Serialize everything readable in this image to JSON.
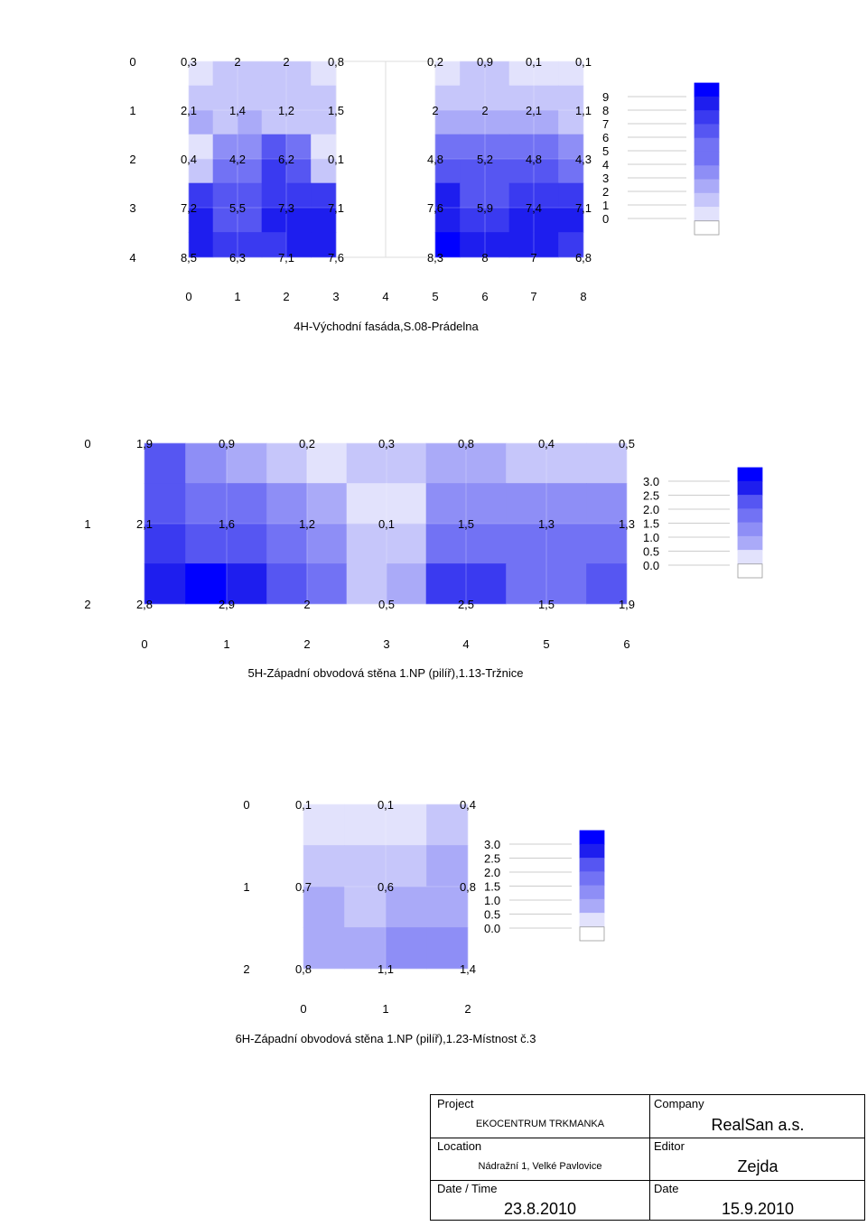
{
  "chart_data": [
    {
      "type": "heatmap",
      "title": "4H-Východní fasáda,S.08-Prádelna",
      "x": [
        0,
        1,
        2,
        3,
        4,
        5,
        6,
        7,
        8
      ],
      "y": [
        0,
        1,
        2,
        3,
        4
      ],
      "panels": [
        {
          "cols": [
            0,
            1,
            2,
            3
          ],
          "values": [
            [
              "0,3",
              "2",
              "2",
              "0,8"
            ],
            [
              "2,1",
              "1,4",
              "1,2",
              "1,5"
            ],
            [
              "0,4",
              "4,2",
              "6,2",
              "0,1"
            ],
            [
              "7,2",
              "5,5",
              "7,3",
              "7,1"
            ],
            [
              "8,5",
              "6,3",
              "7,1",
              "7,6"
            ]
          ]
        },
        {
          "cols": [
            5,
            6,
            7,
            8
          ],
          "values": [
            [
              "0,2",
              "0,9",
              "0,1",
              "0,1"
            ],
            [
              "2",
              "2",
              "2,1",
              "1,1"
            ],
            [
              "4,8",
              "5,2",
              "4,8",
              "4,3"
            ],
            [
              "7,6",
              "5,9",
              "7,4",
              "7,1"
            ],
            [
              "8,3",
              "8",
              "7",
              "6,8"
            ]
          ]
        }
      ],
      "legend_levels": [
        "9",
        "8",
        "7",
        "6",
        "5",
        "4",
        "3",
        "2",
        "1",
        "0"
      ],
      "zmin": 0,
      "zmax": 9
    },
    {
      "type": "heatmap",
      "title": "5H-Západní obvodová stěna 1.NP (pilíř),1.13-Tržnice",
      "x": [
        0,
        1,
        2,
        3,
        4,
        5,
        6
      ],
      "y": [
        0,
        1,
        2
      ],
      "panels": [
        {
          "cols": [
            0,
            1,
            2,
            3,
            4,
            5,
            6
          ],
          "values": [
            [
              "1,9",
              "0,9",
              "0,2",
              "0,3",
              "0,8",
              "0,4",
              "0,5"
            ],
            [
              "2,1",
              "1,6",
              "1,2",
              "0,1",
              "1,5",
              "1,3",
              "1,3"
            ],
            [
              "2,8",
              "2,9",
              "2",
              "0,5",
              "2,5",
              "1,5",
              "1,9"
            ]
          ]
        }
      ],
      "legend_levels": [
        "3.0",
        "2.5",
        "2.0",
        "1.5",
        "1.0",
        "0.5",
        "0.0"
      ],
      "zmin": 0,
      "zmax": 3
    },
    {
      "type": "heatmap",
      "title": "6H-Západní obvodová stěna 1.NP (pilíř),1.23-Místnost č.3",
      "x": [
        0,
        1,
        2
      ],
      "y": [
        0,
        1,
        2
      ],
      "panels": [
        {
          "cols": [
            0,
            1,
            2
          ],
          "values": [
            [
              "0,1",
              "0,1",
              "0,4"
            ],
            [
              "0,7",
              "0,6",
              "0,8"
            ],
            [
              "0,8",
              "1,1",
              "1,4"
            ]
          ]
        }
      ],
      "legend_levels": [
        "3.0",
        "2.5",
        "2.0",
        "1.5",
        "1.0",
        "0.5",
        "0.0"
      ],
      "zmin": 0,
      "zmax": 3
    }
  ],
  "colors": {
    "ramp": [
      "#ffffff",
      "#e2e2fc",
      "#c6c6fa",
      "#aaaaf8",
      "#8e8ef6",
      "#7272f4",
      "#5656f2",
      "#3a3af0",
      "#1e1eee",
      "#0000ff"
    ]
  },
  "title_block": {
    "project_label": "Project",
    "project_value": "EKOCENTRUM TRKMANKA",
    "company_label": "Company",
    "company_value": "RealSan a.s.",
    "location_label": "Location",
    "location_value": "Nádražní 1, Velké Pavlovice",
    "editor_label": "Editor",
    "editor_value": "Zejda",
    "datetime_label": "Date / Time",
    "datetime_value": "23.8.2010",
    "date_label": "Date",
    "date_value": "15.9.2010"
  }
}
